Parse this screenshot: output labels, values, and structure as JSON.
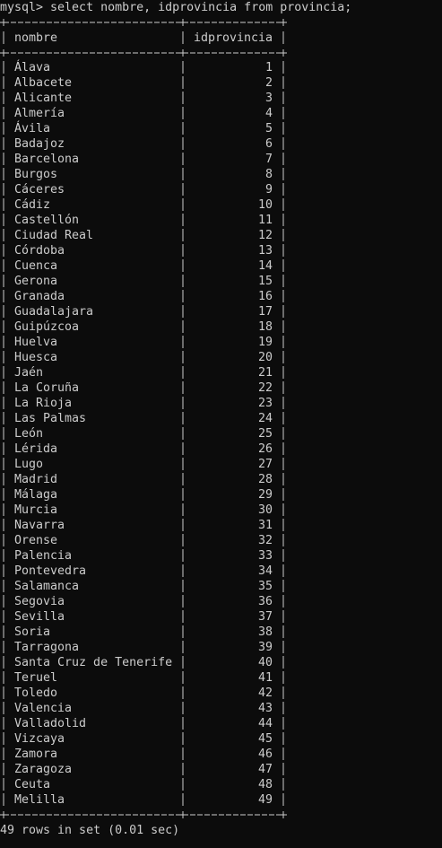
{
  "command": "mysql> select nombre, idprovincia from provincia;",
  "table": {
    "headers": [
      "nombre",
      "idprovincia"
    ],
    "rows": [
      [
        "Álava",
        1
      ],
      [
        "Albacete",
        2
      ],
      [
        "Alicante",
        3
      ],
      [
        "Almería",
        4
      ],
      [
        "Ávila",
        5
      ],
      [
        "Badajoz",
        6
      ],
      [
        "Barcelona",
        7
      ],
      [
        "Burgos",
        8
      ],
      [
        "Cáceres",
        9
      ],
      [
        "Cádiz",
        10
      ],
      [
        "Castellón",
        11
      ],
      [
        "Ciudad Real",
        12
      ],
      [
        "Córdoba",
        13
      ],
      [
        "Cuenca",
        14
      ],
      [
        "Gerona",
        15
      ],
      [
        "Granada",
        16
      ],
      [
        "Guadalajara",
        17
      ],
      [
        "Guipúzcoa",
        18
      ],
      [
        "Huelva",
        19
      ],
      [
        "Huesca",
        20
      ],
      [
        "Jaén",
        21
      ],
      [
        "La Coruña",
        22
      ],
      [
        "La Rioja",
        23
      ],
      [
        "Las Palmas",
        24
      ],
      [
        "León",
        25
      ],
      [
        "Lérida",
        26
      ],
      [
        "Lugo",
        27
      ],
      [
        "Madrid",
        28
      ],
      [
        "Málaga",
        29
      ],
      [
        "Murcia",
        30
      ],
      [
        "Navarra",
        31
      ],
      [
        "Orense",
        32
      ],
      [
        "Palencia",
        33
      ],
      [
        "Pontevedra",
        34
      ],
      [
        "Salamanca",
        35
      ],
      [
        "Segovia",
        36
      ],
      [
        "Sevilla",
        37
      ],
      [
        "Soria",
        38
      ],
      [
        "Tarragona",
        39
      ],
      [
        "Santa Cruz de Tenerife",
        40
      ],
      [
        "Teruel",
        41
      ],
      [
        "Toledo",
        42
      ],
      [
        "Valencia",
        43
      ],
      [
        "Valladolid",
        44
      ],
      [
        "Vizcaya",
        45
      ],
      [
        "Zamora",
        46
      ],
      [
        "Zaragoza",
        47
      ],
      [
        "Ceuta",
        48
      ],
      [
        "Melilla",
        49
      ]
    ]
  },
  "footer": "49 rows in set (0.01 sec)"
}
